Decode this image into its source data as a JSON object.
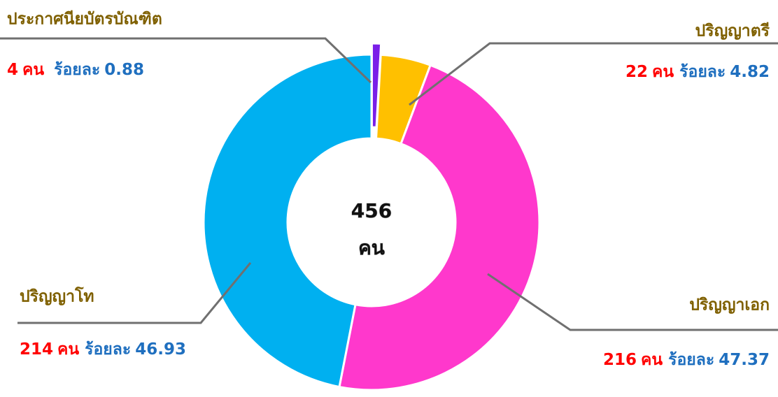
{
  "chart_data": {
    "type": "donut",
    "categories": [
      "ประกาศนียบัตรบัณฑิต",
      "ปริญญาตรี",
      "ปริญญาเอก",
      "ปริญญาโท"
    ],
    "values": [
      4,
      22,
      216,
      214
    ],
    "percentages": [
      0.88,
      4.82,
      47.37,
      46.93
    ],
    "colors": [
      "#7a1fe8",
      "#ffc000",
      "#ff38cc",
      "#00b0f0"
    ],
    "unit": "คน",
    "percent_prefix": "ร้อยละ",
    "total": 456
  }
}
